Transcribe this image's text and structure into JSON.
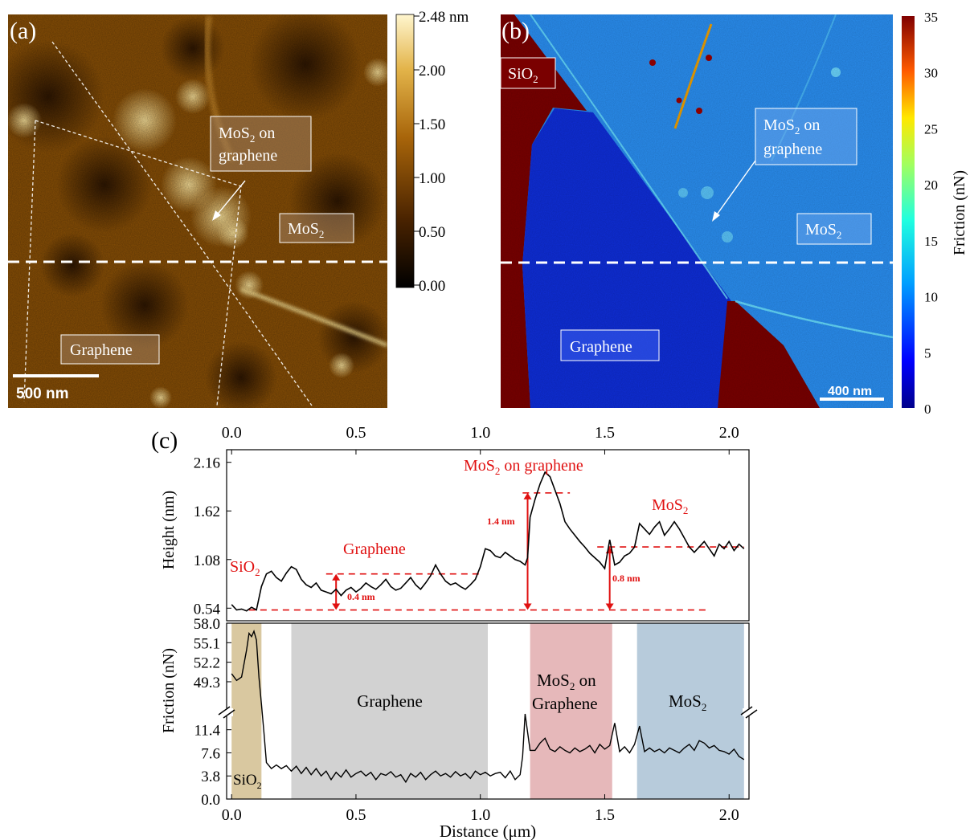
{
  "panel_labels": {
    "a": "(a)",
    "b": "(b)",
    "c": "(c)"
  },
  "panel_a": {
    "colorbar_ticks": [
      "2.48 nm",
      "2.00",
      "1.50",
      "1.00",
      "0.50",
      "0.00"
    ],
    "labels": {
      "mos2_on_graphene_1": "MoS",
      "mos2_on_graphene_sub": "2",
      "mos2_on_graphene_2": " on",
      "mos2_on_graphene_3": "graphene",
      "mos2": "MoS",
      "mos2_sub": "2",
      "graphene": "Graphene"
    },
    "scalebar": "500 nm",
    "colors": {
      "dark": "#2a1200",
      "mid": "#8a5006",
      "bright": "#f0d48a"
    }
  },
  "panel_b": {
    "colorbar_label": "Friction (nN)",
    "colorbar_ticks": [
      "35",
      "30",
      "25",
      "20",
      "15",
      "10",
      "5",
      "0"
    ],
    "labels": {
      "sio2": "SiO",
      "sio2_sub": "2",
      "mos2_on_graphene_1": "MoS",
      "mos2_on_graphene_sub": "2",
      "mos2_on_graphene_2": " on",
      "mos2_on_graphene_3": "graphene",
      "mos2": "MoS",
      "mos2_sub": "2",
      "graphene": "Graphene"
    },
    "scalebar": "400 nm",
    "colors": {
      "sio2": "#7a0000",
      "graphene": "#0f2ed8",
      "mos2": "#2a8ef0"
    }
  },
  "panel_c": {
    "xlabel": "Distance (μm)",
    "annotations": {
      "sio2": "SiO",
      "sio2_sub": "2",
      "graphene": "Graphene",
      "mos2_on_graphene": "MoS",
      "mos2_on_graphene_sub": "2",
      "mos2_on_graphene_rest": " on graphene",
      "mos2": "MoS",
      "mos2_sub": "2",
      "step_04": "0.4 nm",
      "step_14": "1.4 nm",
      "step_08": "0.8 nm"
    },
    "bands": {
      "sio2": "SiO",
      "sio2_sub": "2",
      "graphene": "Graphene",
      "mos2_on_graphene_1": "MoS",
      "mos2_on_graphene_sub": "2",
      "mos2_on_graphene_2": " on",
      "mos2_on_graphene_3": "Graphene",
      "mos2": "MoS",
      "mos2_sub": "2"
    },
    "band_colors": {
      "sio2": "#d9c8a0",
      "graphene": "#d2d2d2",
      "mos2_on_graphene": "#e6b8ba",
      "mos2": "#b7cbdb"
    }
  },
  "chart_data": [
    {
      "type": "line",
      "title": "",
      "xlabel": "",
      "ylabel": "Height (nm)",
      "xlim": [
        -0.02,
        2.08
      ],
      "ylim": [
        0.4,
        2.3
      ],
      "xticks": [
        0.0,
        0.5,
        1.0,
        1.5,
        2.0
      ],
      "xtick_labels": [
        "0.0",
        "0.5",
        "1.0",
        "1.5",
        "2.0"
      ],
      "yticks": [
        0.54,
        1.08,
        1.62,
        2.16
      ],
      "ytick_labels": [
        "0.54",
        "1.08",
        "1.62",
        "2.16"
      ],
      "x": [
        0.0,
        0.02,
        0.04,
        0.06,
        0.08,
        0.1,
        0.12,
        0.14,
        0.16,
        0.18,
        0.2,
        0.22,
        0.24,
        0.26,
        0.28,
        0.3,
        0.32,
        0.34,
        0.36,
        0.38,
        0.4,
        0.42,
        0.44,
        0.46,
        0.48,
        0.5,
        0.52,
        0.54,
        0.56,
        0.58,
        0.6,
        0.62,
        0.64,
        0.66,
        0.68,
        0.7,
        0.72,
        0.74,
        0.76,
        0.78,
        0.8,
        0.82,
        0.84,
        0.86,
        0.88,
        0.9,
        0.92,
        0.94,
        0.96,
        0.98,
        1.0,
        1.02,
        1.04,
        1.06,
        1.08,
        1.1,
        1.12,
        1.14,
        1.16,
        1.18,
        1.19,
        1.2,
        1.22,
        1.24,
        1.26,
        1.28,
        1.3,
        1.32,
        1.34,
        1.36,
        1.38,
        1.4,
        1.42,
        1.44,
        1.46,
        1.48,
        1.5,
        1.52,
        1.54,
        1.56,
        1.58,
        1.6,
        1.62,
        1.64,
        1.66,
        1.68,
        1.7,
        1.72,
        1.74,
        1.76,
        1.78,
        1.8,
        1.82,
        1.84,
        1.86,
        1.88,
        1.9,
        1.92,
        1.94,
        1.96,
        1.98,
        2.0,
        2.02,
        2.04,
        2.06
      ],
      "y": [
        0.58,
        0.52,
        0.53,
        0.51,
        0.55,
        0.52,
        0.78,
        0.92,
        0.95,
        0.88,
        0.84,
        0.93,
        1.0,
        0.97,
        0.86,
        0.8,
        0.77,
        0.82,
        0.74,
        0.72,
        0.7,
        0.75,
        0.68,
        0.74,
        0.77,
        0.72,
        0.76,
        0.82,
        0.78,
        0.75,
        0.8,
        0.86,
        0.78,
        0.74,
        0.76,
        0.82,
        0.88,
        0.8,
        0.75,
        0.82,
        0.9,
        1.02,
        0.92,
        0.84,
        0.8,
        0.82,
        0.78,
        0.75,
        0.8,
        0.86,
        1.0,
        1.2,
        1.18,
        1.12,
        1.1,
        1.16,
        1.12,
        1.08,
        1.06,
        1.02,
        1.1,
        1.55,
        1.75,
        1.92,
        2.05,
        2.0,
        1.85,
        1.7,
        1.5,
        1.42,
        1.35,
        1.28,
        1.22,
        1.15,
        1.1,
        1.05,
        0.98,
        1.3,
        1.02,
        1.05,
        1.12,
        1.15,
        1.22,
        1.48,
        1.42,
        1.36,
        1.44,
        1.5,
        1.35,
        1.42,
        1.5,
        1.42,
        1.32,
        1.22,
        1.16,
        1.22,
        1.28,
        1.2,
        1.12,
        1.25,
        1.2,
        1.28,
        1.18,
        1.25,
        1.2
      ],
      "reference_lines": [
        {
          "y": 0.52,
          "x_start": 0.07,
          "x_end": 1.92
        },
        {
          "y": 0.92,
          "x_start": 0.38,
          "x_end": 1.0
        },
        {
          "y": 1.82,
          "x_start": 1.17,
          "x_end": 1.36
        },
        {
          "y": 1.22,
          "x_start": 1.47,
          "x_end": 2.06
        }
      ],
      "steps": [
        {
          "label": "0.4 nm",
          "x": 0.42,
          "from": 0.52,
          "to": 0.92
        },
        {
          "label": "1.4 nm",
          "x": 1.19,
          "from": 0.52,
          "to": 1.82
        },
        {
          "label": "0.8 nm",
          "x": 1.52,
          "from": 0.52,
          "to": 1.22
        }
      ]
    },
    {
      "type": "line",
      "title": "",
      "xlabel": "Distance (μm)",
      "ylabel": "Friction (nN)",
      "xlim": [
        -0.02,
        2.08
      ],
      "y_axis_break": true,
      "ylim_lower": [
        0,
        14
      ],
      "ylim_upper": [
        45,
        58
      ],
      "xticks": [
        0.0,
        0.5,
        1.0,
        1.5,
        2.0
      ],
      "xtick_labels": [
        "0.0",
        "0.5",
        "1.0",
        "1.5",
        "2.0"
      ],
      "yticks": [
        0.0,
        3.8,
        7.6,
        11.4,
        49.3,
        52.2,
        55.1,
        58.0
      ],
      "ytick_labels": [
        "0.0",
        "3.8",
        "7.6",
        "11.4",
        "49.3",
        "52.2",
        "55.1",
        "58.0"
      ],
      "bands": [
        {
          "name": "SiO2",
          "x_start": 0.0,
          "x_end": 0.12
        },
        {
          "name": "Graphene",
          "x_start": 0.24,
          "x_end": 1.03
        },
        {
          "name": "MoS2 on Graphene",
          "x_start": 1.2,
          "x_end": 1.53
        },
        {
          "name": "MoS2",
          "x_start": 1.63,
          "x_end": 2.06
        }
      ],
      "x": [
        0.0,
        0.02,
        0.04,
        0.06,
        0.07,
        0.08,
        0.09,
        0.1,
        0.11,
        0.12,
        0.13,
        0.14,
        0.16,
        0.18,
        0.2,
        0.22,
        0.24,
        0.26,
        0.28,
        0.3,
        0.32,
        0.34,
        0.36,
        0.38,
        0.4,
        0.42,
        0.44,
        0.46,
        0.48,
        0.5,
        0.52,
        0.54,
        0.56,
        0.58,
        0.6,
        0.62,
        0.64,
        0.66,
        0.68,
        0.7,
        0.72,
        0.74,
        0.76,
        0.78,
        0.8,
        0.82,
        0.84,
        0.86,
        0.88,
        0.9,
        0.92,
        0.94,
        0.96,
        0.98,
        1.0,
        1.02,
        1.04,
        1.06,
        1.08,
        1.1,
        1.12,
        1.14,
        1.16,
        1.17,
        1.18,
        1.2,
        1.22,
        1.24,
        1.26,
        1.28,
        1.3,
        1.32,
        1.34,
        1.36,
        1.38,
        1.4,
        1.42,
        1.44,
        1.46,
        1.48,
        1.5,
        1.52,
        1.54,
        1.56,
        1.58,
        1.6,
        1.62,
        1.64,
        1.66,
        1.68,
        1.7,
        1.72,
        1.74,
        1.76,
        1.78,
        1.8,
        1.82,
        1.84,
        1.86,
        1.88,
        1.9,
        1.92,
        1.94,
        1.96,
        1.98,
        2.0,
        2.02,
        2.04,
        2.06
      ],
      "y": [
        50.5,
        49.5,
        50.0,
        54.0,
        56.5,
        56.0,
        56.8,
        55.5,
        50.0,
        46.0,
        11.0,
        6.0,
        5.0,
        5.6,
        5.0,
        5.5,
        4.6,
        5.4,
        4.2,
        5.2,
        4.0,
        5.0,
        3.8,
        4.6,
        3.2,
        4.4,
        3.6,
        4.8,
        3.6,
        4.2,
        4.6,
        3.8,
        4.4,
        3.2,
        4.2,
        3.9,
        4.5,
        3.6,
        4.0,
        2.8,
        4.2,
        3.6,
        4.4,
        3.2,
        4.0,
        4.6,
        3.8,
        4.2,
        3.6,
        4.5,
        3.8,
        4.2,
        3.4,
        4.6,
        4.0,
        4.4,
        3.8,
        4.2,
        4.4,
        3.5,
        4.6,
        3.2,
        4.0,
        7.0,
        14.0,
        8.0,
        8.0,
        9.2,
        10.0,
        8.2,
        7.8,
        8.6,
        8.0,
        7.6,
        8.4,
        7.8,
        8.2,
        8.8,
        7.6,
        9.0,
        8.2,
        8.8,
        12.5,
        7.8,
        8.6,
        7.6,
        9.0,
        12.0,
        7.8,
        8.4,
        7.8,
        8.2,
        7.6,
        8.4,
        8.0,
        7.6,
        8.4,
        9.0,
        8.0,
        9.6,
        9.2,
        8.4,
        8.8,
        8.0,
        7.8,
        7.4,
        8.2,
        7.0,
        6.5
      ]
    }
  ]
}
